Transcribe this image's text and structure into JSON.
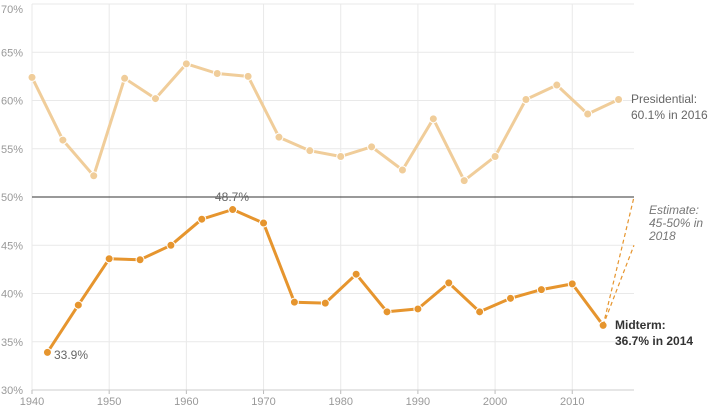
{
  "chart_data": {
    "type": "line",
    "title": "",
    "xlabel": "",
    "ylabel": "",
    "xlim": [
      1940,
      2018
    ],
    "ylim": [
      30,
      70
    ],
    "x_ticks": [
      "1940",
      "1950",
      "1960",
      "1970",
      "1980",
      "1990",
      "2000",
      "2010"
    ],
    "y_ticks": [
      "30%",
      "35%",
      "40%",
      "45%",
      "50%",
      "55%",
      "60%",
      "65%",
      "70%"
    ],
    "grid": true,
    "reference_line": 50,
    "colors": {
      "presidential": "#f0cd9a",
      "midterm": "#e6952e",
      "reference": "#333333"
    },
    "series": [
      {
        "name": "Presidential",
        "x": [
          1940,
          1944,
          1948,
          1952,
          1956,
          1960,
          1964,
          1968,
          1972,
          1976,
          1980,
          1984,
          1988,
          1992,
          1996,
          2000,
          2004,
          2008,
          2012,
          2016
        ],
        "y": [
          62.4,
          55.9,
          52.2,
          62.3,
          60.2,
          63.8,
          62.8,
          62.5,
          56.2,
          54.8,
          54.2,
          55.2,
          52.8,
          58.1,
          51.7,
          54.2,
          60.1,
          61.6,
          58.6,
          60.1
        ]
      },
      {
        "name": "Midterm",
        "x": [
          1942,
          1946,
          1950,
          1954,
          1958,
          1962,
          1966,
          1970,
          1974,
          1978,
          1982,
          1986,
          1990,
          1994,
          1998,
          2002,
          2006,
          2010,
          2014
        ],
        "y": [
          33.9,
          38.8,
          43.6,
          43.5,
          45.0,
          47.7,
          48.7,
          47.3,
          39.1,
          39.0,
          42.0,
          38.1,
          38.4,
          41.1,
          38.1,
          39.5,
          40.4,
          41.0,
          36.7
        ]
      }
    ],
    "estimate": {
      "x": 2018,
      "low": 45,
      "high": 50
    },
    "annotations": {
      "presidential_line1": "Presidential:",
      "presidential_line2": "60.1% in 2016",
      "midterm_line1": "Midterm:",
      "midterm_line2": "36.7% in 2014",
      "peak": "48.7%",
      "low": "33.9%",
      "estimate_line1": "Estimate:",
      "estimate_line2": "45-50% in",
      "estimate_line3": "2018"
    }
  }
}
